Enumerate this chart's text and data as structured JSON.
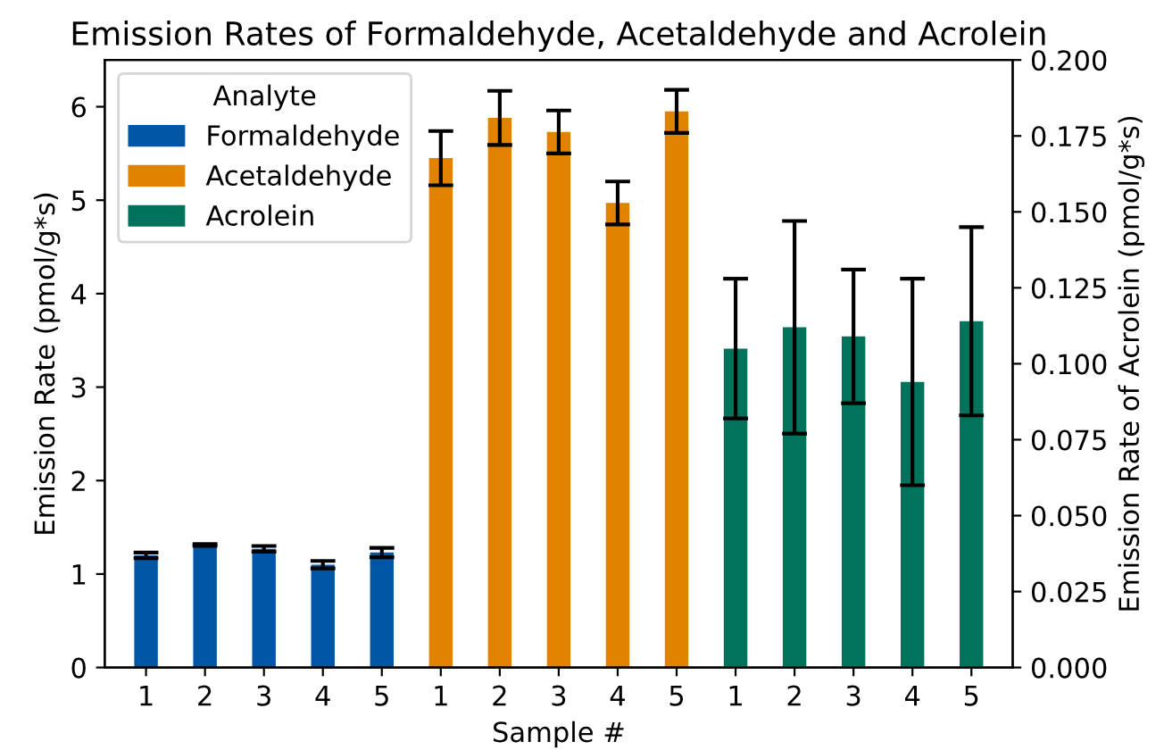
{
  "chart_data": {
    "type": "bar",
    "title": "Emission Rates of Formaldehyde, Acetaldehyde and Acrolein",
    "xlabel": "Sample #",
    "ylabel": "Emission Rate (pmol/g*s)",
    "y2label": "Emission Rate of Acrolein (pmol/g*s)",
    "legend_title": "Analyte",
    "legend": "top left",
    "grid": false,
    "categories": [
      "1",
      "2",
      "3",
      "4",
      "5",
      "1",
      "2",
      "3",
      "4",
      "5",
      "1",
      "2",
      "3",
      "4",
      "5"
    ],
    "series": [
      {
        "name": "Formaldehyde",
        "color": "#0055a5",
        "values": [
          1.2,
          1.31,
          1.27,
          1.1,
          1.23,
          null,
          null,
          null,
          null,
          null,
          null,
          null,
          null,
          null,
          null
        ],
        "errors": [
          0.03,
          0.01,
          0.03,
          0.04,
          0.05,
          null,
          null,
          null,
          null,
          null,
          null,
          null,
          null,
          null,
          null
        ]
      },
      {
        "name": "Acetaldehyde",
        "color": "#e08300",
        "values": [
          null,
          null,
          null,
          null,
          null,
          5.45,
          5.88,
          5.73,
          4.97,
          5.95,
          null,
          null,
          null,
          null,
          null
        ],
        "errors": [
          null,
          null,
          null,
          null,
          null,
          0.29,
          0.29,
          0.23,
          0.23,
          0.23,
          null,
          null,
          null,
          null,
          null
        ]
      },
      {
        "name": "Acrolein",
        "color": "#00735a",
        "axis": "y2",
        "values": [
          null,
          null,
          null,
          null,
          null,
          null,
          null,
          null,
          null,
          null,
          0.105,
          0.112,
          0.109,
          0.094,
          0.114
        ],
        "errors": [
          null,
          null,
          null,
          null,
          null,
          null,
          null,
          null,
          null,
          null,
          0.023,
          0.035,
          0.022,
          0.034,
          0.031
        ]
      }
    ],
    "ylim": [
      0,
      6.5
    ],
    "yticks": [
      0,
      1,
      2,
      3,
      4,
      5,
      6
    ],
    "y2lim": [
      0,
      0.2
    ],
    "y2ticks": [
      {
        "value": 0,
        "label": "0.000"
      },
      {
        "value": 0.025,
        "label": "0.025"
      },
      {
        "value": 0.05,
        "label": "0.050"
      },
      {
        "value": 0.075,
        "label": "0.075"
      },
      {
        "value": 0.1,
        "label": "0.100"
      },
      {
        "value": 0.125,
        "label": "0.125"
      },
      {
        "value": 0.15,
        "label": "0.150"
      },
      {
        "value": 0.175,
        "label": "0.175"
      },
      {
        "value": 0.2,
        "label": "0.200"
      }
    ]
  }
}
